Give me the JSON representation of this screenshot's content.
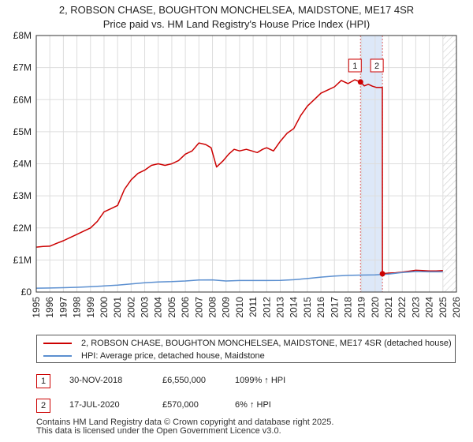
{
  "header": {
    "title_line1": "2, ROBSON CHASE, BOUGHTON MONCHELSEA, MAIDSTONE, ME17 4SR",
    "title_line2": "Price paid vs. HM Land Registry's House Price Index (HPI)"
  },
  "colors": {
    "property_line": "#cc0000",
    "hpi_line": "#5b8fd0",
    "highlight_band": "#dde8f8",
    "hatch": "#cccccc",
    "grid": "#dddddd",
    "marker_border": "#cc0000"
  },
  "chart_data": {
    "type": "line",
    "title": "2, ROBSON CHASE, BOUGHTON MONCHELSEA, MAIDSTONE, ME17 4SR — Price paid vs. HM Land Registry's House Price Index (HPI)",
    "xlim": [
      1995,
      2026
    ],
    "ylim": [
      0,
      8000000
    ],
    "x_ticks": [
      1995,
      1996,
      1997,
      1998,
      1999,
      2000,
      2001,
      2002,
      2003,
      2004,
      2005,
      2006,
      2007,
      2008,
      2009,
      2010,
      2011,
      2012,
      2013,
      2014,
      2015,
      2016,
      2017,
      2018,
      2019,
      2020,
      2021,
      2022,
      2023,
      2024,
      2025,
      2026
    ],
    "y_ticks": [
      0,
      1000000,
      2000000,
      3000000,
      4000000,
      5000000,
      6000000,
      7000000,
      8000000
    ],
    "y_tick_labels": [
      "£0",
      "£1M",
      "£2M",
      "£3M",
      "£4M",
      "£5M",
      "£6M",
      "£7M",
      "£8M"
    ],
    "highlight_range": [
      2018.92,
      2020.54
    ],
    "hatched_from": 2025.0,
    "series": [
      {
        "name": "2, ROBSON CHASE, BOUGHTON MONCHELSEA, MAIDSTONE, ME17 4SR (detached house)",
        "color": "#cc0000",
        "x": [
          1995.0,
          1995.5,
          1996.0,
          1996.5,
          1997.0,
          1997.5,
          1998.0,
          1998.5,
          1999.0,
          1999.5,
          2000.0,
          2000.5,
          2001.0,
          2001.5,
          2002.0,
          2002.5,
          2003.0,
          2003.5,
          2004.0,
          2004.5,
          2005.0,
          2005.5,
          2006.0,
          2006.5,
          2007.0,
          2007.5,
          2007.9,
          2008.3,
          2008.8,
          2009.2,
          2009.6,
          2010.0,
          2010.5,
          2010.9,
          2011.3,
          2011.7,
          2012.0,
          2012.5,
          2013.0,
          2013.5,
          2014.0,
          2014.5,
          2015.0,
          2015.5,
          2016.0,
          2016.5,
          2017.0,
          2017.5,
          2018.0,
          2018.5,
          2018.92,
          2019.2,
          2019.5,
          2019.8,
          2020.1,
          2020.4,
          2020.53,
          2020.54,
          2021.0,
          2021.5,
          2022.0,
          2022.5,
          2023.0,
          2023.5,
          2024.0,
          2024.5,
          2025.0
        ],
        "y": [
          1400000,
          1420000,
          1430000,
          1520000,
          1600000,
          1700000,
          1800000,
          1900000,
          2000000,
          2200000,
          2500000,
          2600000,
          2700000,
          3200000,
          3500000,
          3700000,
          3800000,
          3950000,
          4000000,
          3950000,
          4000000,
          4100000,
          4300000,
          4400000,
          4650000,
          4600000,
          4500000,
          3900000,
          4100000,
          4300000,
          4450000,
          4400000,
          4450000,
          4400000,
          4350000,
          4450000,
          4500000,
          4400000,
          4700000,
          4950000,
          5100000,
          5500000,
          5800000,
          6000000,
          6200000,
          6300000,
          6400000,
          6600000,
          6500000,
          6620000,
          6550000,
          6430000,
          6480000,
          6420000,
          6380000,
          6380000,
          6380000,
          570000,
          590000,
          600000,
          620000,
          650000,
          680000,
          670000,
          660000,
          660000,
          670000
        ]
      },
      {
        "name": "HPI: Average price, detached house, Maidstone",
        "color": "#5b8fd0",
        "x": [
          1995,
          1996,
          1997,
          1998,
          1999,
          2000,
          2001,
          2002,
          2003,
          2004,
          2005,
          2006,
          2007,
          2008,
          2009,
          2010,
          2011,
          2012,
          2013,
          2014,
          2015,
          2016,
          2017,
          2018,
          2019,
          2020,
          2021,
          2022,
          2023,
          2024,
          2025
        ],
        "y": [
          120000,
          125000,
          135000,
          148000,
          165000,
          190000,
          215000,
          250000,
          290000,
          315000,
          325000,
          345000,
          375000,
          380000,
          345000,
          360000,
          360000,
          360000,
          365000,
          385000,
          420000,
          465000,
          500000,
          520000,
          530000,
          535000,
          560000,
          610000,
          640000,
          630000,
          630000
        ]
      }
    ],
    "markers": [
      {
        "label": "1",
        "x": 2018.92,
        "y": 6550000
      },
      {
        "label": "2",
        "x": 2020.54,
        "y": 570000
      }
    ]
  },
  "legend": {
    "property_label": "2, ROBSON CHASE, BOUGHTON MONCHELSEA, MAIDSTONE, ME17 4SR (detached house)",
    "hpi_label": "HPI: Average price, detached house, Maidstone"
  },
  "transactions": [
    {
      "num": "1",
      "date": "30-NOV-2018",
      "price": "£6,550,000",
      "hpi": "1099% ↑ HPI"
    },
    {
      "num": "2",
      "date": "17-JUL-2020",
      "price": "£570,000",
      "hpi": "6% ↑ HPI"
    }
  ],
  "footer": {
    "line1": "Contains HM Land Registry data © Crown copyright and database right 2025.",
    "line2": "This data is licensed under the Open Government Licence v3.0."
  }
}
